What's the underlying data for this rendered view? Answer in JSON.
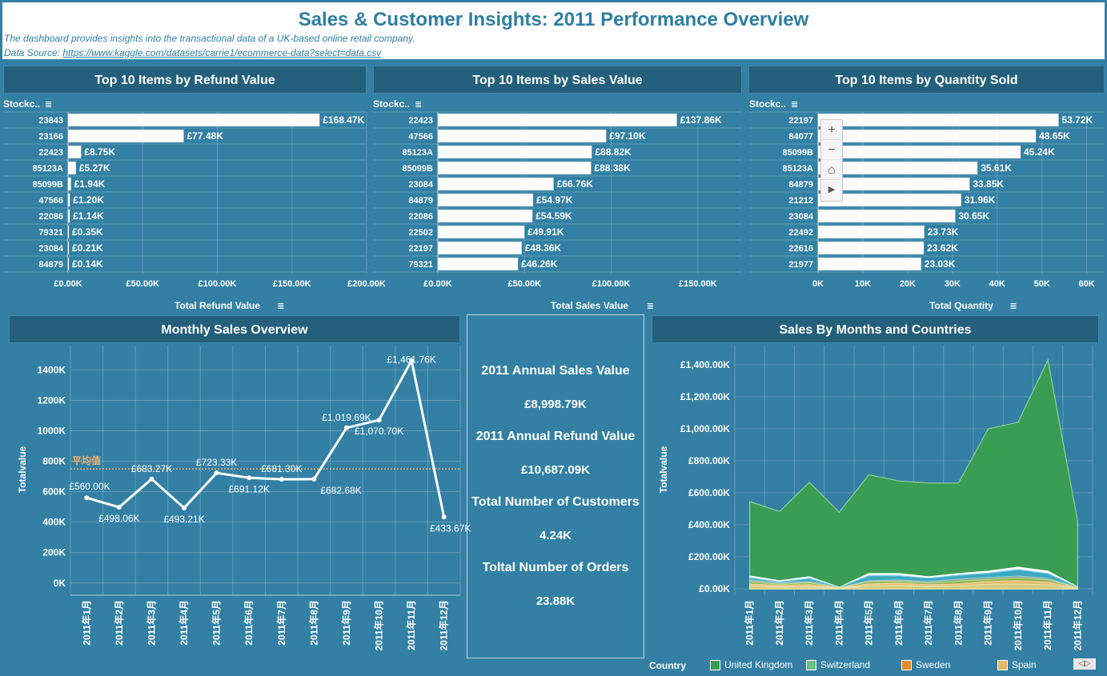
{
  "header": {
    "title": "Sales & Customer Insights: 2011 Performance Overview",
    "description": "The dashboard provides insights into the transactional data of a UK-based online retail company.",
    "source_label": "Data Source: ",
    "source_url": "https://www.kaggle.com/datasets/carrie1/ecommerce-data?select=data.csv"
  },
  "panels": {
    "refund": "Top 10 Items by Refund Value",
    "sales": "Top 10 Items by Sales Value",
    "quantity": "Top 10 Items by Quantity Sold",
    "monthly": "Monthly Sales Overview",
    "countries": "Sales By Months and Countries"
  },
  "kpi": {
    "annual_sales_label": "2011 Annual Sales Value",
    "annual_sales_value": "£8,998.79K",
    "annual_refund_label": "2011 Annual Refund Value",
    "annual_refund_value": "£10,687.09K",
    "customers_label": "Total Number of Customers",
    "customers_value": "4.24K",
    "orders_label": "Toltal Number of Orders",
    "orders_value": "23.88K"
  },
  "zoom": {
    "plus": "+",
    "minus": "−",
    "home": "⌂",
    "play": "▶"
  },
  "legend": {
    "title": "Country",
    "nav": "◁▷"
  },
  "colors": {
    "background": "#3380a4",
    "header_bar": "#245f7b",
    "bar": "#ffffff",
    "line": "#ffffff",
    "avg_line": "#f4b06b",
    "united_kingdom": "#3a9d54",
    "switzerland": "#6cc17f",
    "sweden": "#e68a2e",
    "spain": "#e3b96a"
  },
  "chart_data": [
    {
      "type": "bar",
      "orientation": "horizontal",
      "title": "Top 10 Items by Refund Value",
      "ylabel": "Stockc..",
      "xlabel": "Total Refund Value",
      "categories": [
        "23843",
        "23166",
        "22423",
        "85123A",
        "85099B",
        "47566",
        "22086",
        "79321",
        "23084",
        "84879"
      ],
      "values": [
        168.47,
        77.48,
        8.75,
        5.27,
        1.94,
        1.2,
        1.14,
        0.35,
        0.21,
        0.14
      ],
      "value_labels": [
        "£168.47K",
        "£77.48K",
        "£8.75K",
        "£5.27K",
        "£1.94K",
        "£1.20K",
        "£1.14K",
        "£0.35K",
        "£0.21K",
        "£0.14K"
      ],
      "xlim": [
        0,
        200
      ],
      "xticks": [
        0,
        50,
        100,
        150,
        200
      ],
      "xtick_labels": [
        "£0.00K",
        "£50.00K",
        "£100.00K",
        "£150.00K",
        "£200.00K"
      ]
    },
    {
      "type": "bar",
      "orientation": "horizontal",
      "title": "Top 10 Items by Sales Value",
      "ylabel": "Stockc..",
      "xlabel": "Total Sales Value",
      "categories": [
        "22423",
        "47566",
        "85123A",
        "85099B",
        "23084",
        "84879",
        "22086",
        "22502",
        "22197",
        "79321"
      ],
      "values": [
        137.86,
        97.1,
        88.82,
        88.38,
        66.76,
        54.97,
        54.59,
        49.91,
        48.36,
        46.26
      ],
      "value_labels": [
        "£137.86K",
        "£97.10K",
        "£88.82K",
        "£88.38K",
        "£66.76K",
        "£54.97K",
        "£54.59K",
        "£49.91K",
        "£48.36K",
        "£46.26K"
      ],
      "xlim": [
        0,
        175
      ],
      "xticks": [
        0,
        50,
        100,
        150
      ],
      "xtick_labels": [
        "£0.00K",
        "£50.00K",
        "£100.00K",
        "£150.00K"
      ]
    },
    {
      "type": "bar",
      "orientation": "horizontal",
      "title": "Top 10 Items by Quantity Sold",
      "ylabel": "Stockc..",
      "xlabel": "Total Quantity",
      "categories": [
        "22197",
        "84077",
        "85099B",
        "85123A",
        "84879",
        "21212",
        "23084",
        "22492",
        "22616",
        "21977"
      ],
      "values": [
        53.72,
        48.65,
        45.24,
        35.61,
        33.85,
        31.96,
        30.65,
        23.73,
        23.62,
        23.03
      ],
      "value_labels": [
        "53.72K",
        "48.65K",
        "45.24K",
        "35.61K",
        "33.85K",
        "31.96K",
        "30.65K",
        "23.73K",
        "23.62K",
        "23.03K"
      ],
      "xlim": [
        0,
        64
      ],
      "xticks": [
        0,
        10,
        20,
        30,
        40,
        50,
        60
      ],
      "xtick_labels": [
        "0K",
        "10K",
        "20K",
        "30K",
        "40K",
        "50K",
        "60K"
      ]
    },
    {
      "type": "line",
      "title": "Monthly Sales Overview",
      "ylabel": "Totalvalue",
      "categories": [
        "2011年1月",
        "2011年2月",
        "2011年3月",
        "2011年4月",
        "2011年5月",
        "2011年6月",
        "2011年7月",
        "2011年8月",
        "2011年9月",
        "2011年10月",
        "2011年11月",
        "2011年12月"
      ],
      "values": [
        560.0,
        498.06,
        683.27,
        493.21,
        723.33,
        691.12,
        681.3,
        682.68,
        1019.69,
        1070.7,
        1461.76,
        433.67
      ],
      "value_labels": [
        "£560.00K",
        "£498.06K",
        "£683.27K",
        "£493.21K",
        "£723.33K",
        "£691.12K",
        "£681.30K",
        "£682.68K",
        "£1,019.69K",
        "£1,070.70K",
        "£1,461.76K",
        "£433.67K"
      ],
      "average": 749.9,
      "average_label": "平均值",
      "ylim": [
        -80,
        1560
      ],
      "yticks": [
        0,
        200,
        400,
        600,
        800,
        1000,
        1200,
        1400
      ],
      "ytick_labels": [
        "0K",
        "200K",
        "400K",
        "600K",
        "800K",
        "1000K",
        "1200K",
        "1400K"
      ]
    },
    {
      "type": "area",
      "title": "Sales By Months and Countries",
      "ylabel": "Totalvalue",
      "categories": [
        "2011年1月",
        "2011年2月",
        "2011年3月",
        "2011年4月",
        "2011年5月",
        "2011年6月",
        "2011年7月",
        "2011年8月",
        "2011年9月",
        "2011年10月",
        "2011年11月",
        "2011年12月"
      ],
      "ylim": [
        -40,
        1520
      ],
      "yticks": [
        0,
        200,
        400,
        600,
        800,
        1000,
        1200,
        1400
      ],
      "ytick_labels": [
        "£0.00K",
        "£200.00K",
        "£400.00K",
        "£600.00K",
        "£800.00K",
        "£1,000.00K",
        "£1,200.00K",
        "£1,400.00K"
      ],
      "series": [
        {
          "name": "United Kingdom",
          "totals": [
            545,
            483,
            665,
            478,
            713,
            674,
            661,
            661,
            1000,
            1040,
            1430,
            420
          ]
        },
        {
          "name": "Switzerland",
          "totals": [
            80,
            50,
            75,
            10,
            95,
            95,
            75,
            95,
            110,
            135,
            110,
            12
          ]
        },
        {
          "name": "Sweden",
          "totals": [
            55,
            35,
            45,
            8,
            50,
            55,
            45,
            60,
            70,
            80,
            65,
            8
          ]
        },
        {
          "name": "Spain",
          "totals": [
            30,
            20,
            25,
            5,
            30,
            35,
            25,
            30,
            45,
            50,
            40,
            5
          ]
        }
      ],
      "other_series_totals": [
        [
          70,
          42,
          65,
          9,
          82,
          82,
          66,
          85,
          98,
          120,
          96,
          10
        ],
        [
          45,
          28,
          38,
          7,
          44,
          47,
          36,
          48,
          58,
          68,
          56,
          7
        ],
        [
          18,
          12,
          14,
          3,
          20,
          22,
          15,
          18,
          28,
          30,
          24,
          3
        ]
      ]
    }
  ]
}
